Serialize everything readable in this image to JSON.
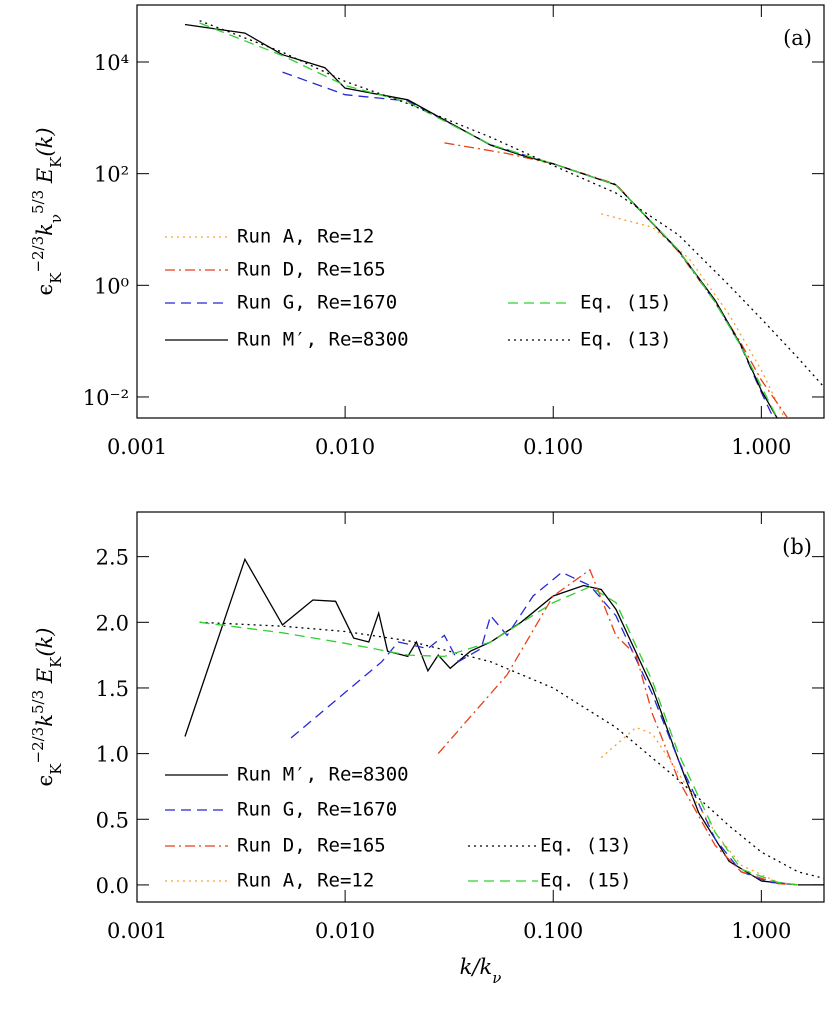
{
  "chart_data": [
    {
      "type": "line",
      "annotation": "(a)",
      "log_x": true,
      "log_y": true,
      "ylabel": [
        "ϵ",
        "K",
        "−2/3",
        "k",
        "ν",
        "5/3",
        " E",
        "K",
        "(k)"
      ],
      "xlim": [
        0.001,
        2
      ],
      "ylim": [
        0.0042,
        105000
      ],
      "xticks": [
        0.001,
        {
          "value": 0.01,
          "label": "0.010"
        },
        {
          "value": 0.1,
          "label": "0.100"
        },
        {
          "value": 1,
          "label": "1.000"
        }
      ],
      "yticks": [
        {
          "value": 0.01,
          "label": "10⁻²"
        },
        {
          "value": 1,
          "label": "10⁰"
        },
        {
          "value": 100,
          "label": "10²"
        },
        {
          "value": 10000,
          "label": "10⁴"
        }
      ],
      "series": [
        {
          "name": "Run A, Re=12",
          "color": "#f5a030",
          "dash": "dotted",
          "x": [
            0.17,
            0.3,
            0.45,
            0.7,
            1.0,
            1.3
          ],
          "values": [
            19,
            11,
            3,
            0.3,
            0.03,
            0.004
          ]
        },
        {
          "name": "Run D, Re=165",
          "color": "#e8401a",
          "dash": "dashdot",
          "x": [
            0.03,
            0.06,
            0.1,
            0.2,
            0.4,
            0.6,
            0.8,
            1.0,
            1.35
          ],
          "values": [
            355,
            230,
            150,
            65,
            4,
            0.5,
            0.09,
            0.02,
            0.004
          ]
        },
        {
          "name": "Run G, Re=1670",
          "color": "#2828d0",
          "dash": "dashed",
          "x": [
            0.005,
            0.01,
            0.02,
            0.05,
            0.1,
            0.2,
            0.4,
            0.6,
            0.8,
            1.0,
            1.15
          ],
          "values": [
            6600,
            2600,
            2000,
            330,
            150,
            63,
            4.2,
            0.5,
            0.08,
            0.012,
            0.004
          ]
        },
        {
          "name": "Run M′, Re=8300",
          "color": "#000000",
          "dash": "solid",
          "x": [
            0.0017,
            0.0033,
            0.005,
            0.008,
            0.01,
            0.02,
            0.03,
            0.05,
            0.07,
            0.1,
            0.2,
            0.4,
            0.6,
            0.8,
            1.0,
            1.2
          ],
          "values": [
            47000,
            33000,
            13500,
            7900,
            3400,
            2100,
            920,
            325,
            215,
            150,
            63,
            4.2,
            0.54,
            0.083,
            0.013,
            0.004
          ]
        },
        {
          "name": "Eq. (15)",
          "color": "#30d030",
          "dash": "dashed",
          "x": [
            0.002,
            0.005,
            0.01,
            0.02,
            0.05,
            0.1,
            0.2,
            0.4,
            0.6,
            0.8,
            1.2
          ],
          "values": [
            50000,
            13000,
            3800,
            1900,
            330,
            150,
            63,
            4.3,
            0.5,
            0.08,
            0.004
          ]
        },
        {
          "name": "Eq. (13)",
          "color": "#000000",
          "dash": "dotted",
          "x": [
            0.002,
            0.005,
            0.01,
            0.02,
            0.05,
            0.1,
            0.2,
            0.4,
            0.7,
            1.0,
            1.5,
            2.0
          ],
          "values": [
            55000,
            15000,
            4500,
            1800,
            450,
            140,
            45,
            8,
            1,
            0.25,
            0.05,
            0.015
          ]
        }
      ]
    },
    {
      "type": "line",
      "annotation": "(b)",
      "log_x": true,
      "log_y": false,
      "ylabel": [
        "ϵ",
        "K",
        "−2/3",
        "k",
        "5/3",
        " E",
        "K",
        "(k)"
      ],
      "xlabel": [
        "k/k",
        "ν"
      ],
      "xlim": [
        0.001,
        2
      ],
      "ylim": [
        -0.13,
        2.84
      ],
      "xticks": [
        0.001,
        {
          "value": 0.01,
          "label": "0.010"
        },
        {
          "value": 0.1,
          "label": "0.100"
        },
        {
          "value": 1,
          "label": "1.000"
        }
      ],
      "yticks": [
        {
          "value": 0,
          "label": "0.0"
        },
        0.5,
        {
          "value": 1,
          "label": "1.0"
        },
        1.5,
        {
          "value": 2,
          "label": "2.0"
        },
        2.5
      ],
      "series": [
        {
          "name": "Run M′, Re=8300",
          "color": "#000000",
          "dash": "solid",
          "x": [
            0.0017,
            0.0033,
            0.005,
            0.007,
            0.009,
            0.011,
            0.013,
            0.0145,
            0.016,
            0.02,
            0.022,
            0.025,
            0.028,
            0.032,
            0.04,
            0.05,
            0.07,
            0.1,
            0.14,
            0.17,
            0.2,
            0.3,
            0.4,
            0.5,
            0.7,
            1.0,
            1.5,
            2.0
          ],
          "values": [
            1.13,
            2.48,
            1.98,
            2.17,
            2.16,
            1.88,
            1.85,
            2.07,
            1.78,
            1.74,
            1.85,
            1.63,
            1.75,
            1.65,
            1.78,
            1.85,
            2.0,
            2.2,
            2.28,
            2.25,
            2.1,
            1.5,
            0.95,
            0.55,
            0.18,
            0.03,
            0,
            0
          ]
        },
        {
          "name": "Run G, Re=1670",
          "color": "#2828d0",
          "dash": "dashed",
          "x": [
            0.0055,
            0.015,
            0.018,
            0.025,
            0.03,
            0.035,
            0.045,
            0.05,
            0.06,
            0.08,
            0.11,
            0.15,
            0.2,
            0.3,
            0.4,
            0.6,
            0.8,
            1.1,
            1.5
          ],
          "values": [
            1.12,
            1.7,
            1.85,
            1.8,
            1.9,
            1.7,
            1.8,
            2.05,
            1.9,
            2.2,
            2.38,
            2.28,
            2.05,
            1.45,
            0.95,
            0.35,
            0.1,
            0.02,
            0
          ]
        },
        {
          "name": "Run D, Re=165",
          "color": "#e8401a",
          "dash": "dashdot",
          "x": [
            0.028,
            0.06,
            0.1,
            0.15,
            0.2,
            0.25,
            0.3,
            0.4,
            0.6,
            0.8,
            1.2,
            1.5
          ],
          "values": [
            1.0,
            1.6,
            2.2,
            2.4,
            1.9,
            1.75,
            1.3,
            0.8,
            0.3,
            0.1,
            0.01,
            0
          ]
        },
        {
          "name": "Run A, Re=12",
          "color": "#f5a030",
          "dash": "dotted",
          "x": [
            0.17,
            0.25,
            0.3,
            0.4,
            0.6,
            0.8,
            1.2,
            1.5
          ],
          "values": [
            0.97,
            1.2,
            1.15,
            0.85,
            0.4,
            0.15,
            0.02,
            0
          ]
        },
        {
          "name": "Eq. (13)",
          "color": "#000000",
          "dash": "dotted",
          "x": [
            0.002,
            0.005,
            0.01,
            0.02,
            0.05,
            0.1,
            0.2,
            0.4,
            0.7,
            1.0,
            1.5,
            2.0
          ],
          "values": [
            2.0,
            1.97,
            1.93,
            1.86,
            1.7,
            1.5,
            1.2,
            0.8,
            0.45,
            0.25,
            0.1,
            0.05
          ]
        },
        {
          "name": "Eq. (15)",
          "color": "#30d030",
          "dash": "dashed",
          "x": [
            0.002,
            0.005,
            0.01,
            0.02,
            0.03,
            0.05,
            0.1,
            0.15,
            0.2,
            0.3,
            0.4,
            0.6,
            0.8,
            1.2,
            1.5
          ],
          "values": [
            2.0,
            1.92,
            1.84,
            1.75,
            1.74,
            1.85,
            2.15,
            2.27,
            2.15,
            1.55,
            1.0,
            0.4,
            0.12,
            0.02,
            0
          ]
        }
      ]
    }
  ]
}
